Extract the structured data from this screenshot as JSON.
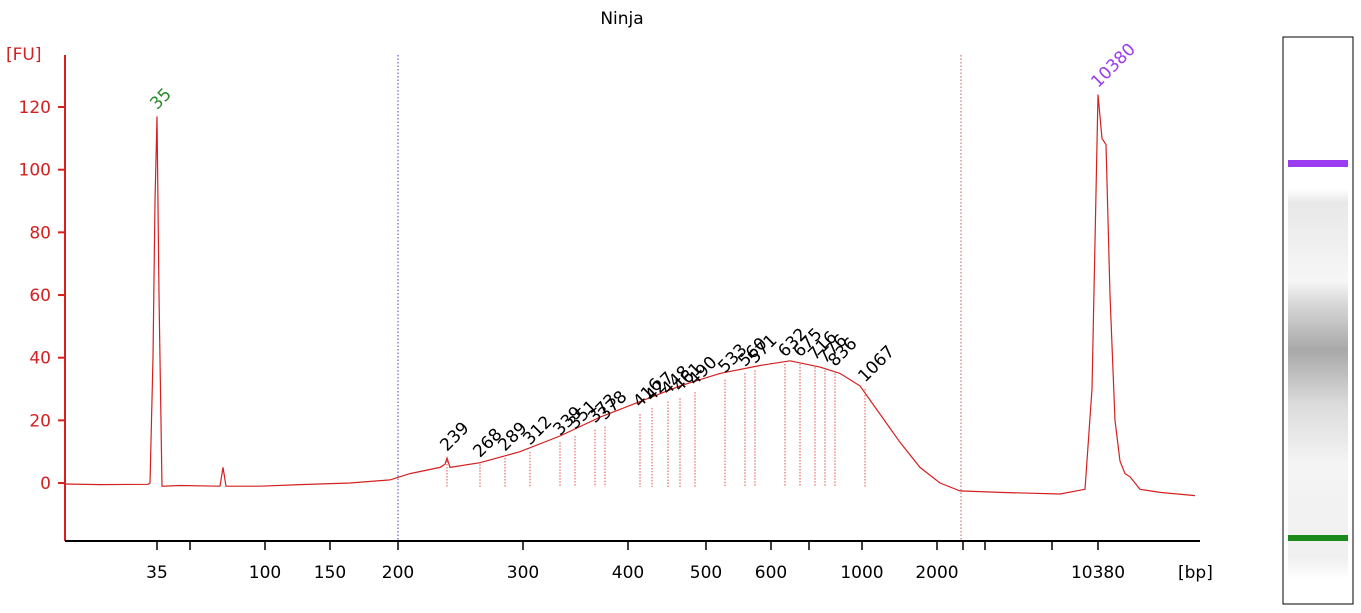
{
  "chart_data": {
    "type": "line",
    "title": "Ninja",
    "ylabel": "[FU]",
    "xlabel": "[bp]",
    "xlim": [
      40,
      153.5
    ],
    "ylim": [
      -18.5,
      136.6
    ],
    "yticks": [
      0,
      20,
      40,
      60,
      80,
      100,
      120
    ],
    "xticks": [
      {
        "value": 49.2,
        "label": "35"
      },
      {
        "value": 52.5,
        "label": null
      },
      {
        "value": 60,
        "label": "100"
      },
      {
        "value": 66.5,
        "label": "150"
      },
      {
        "value": 73.3,
        "label": "200"
      },
      {
        "value": 85.8,
        "label": "300"
      },
      {
        "value": 96.3,
        "label": "400"
      },
      {
        "value": 104.1,
        "label": "500"
      },
      {
        "value": 110.6,
        "label": "600"
      },
      {
        "value": 114.4,
        "label": null
      },
      {
        "value": 119.7,
        "label": "1000"
      },
      {
        "value": 127.2,
        "label": "2000"
      },
      {
        "value": 129.8,
        "label": null
      },
      {
        "value": 132,
        "label": null
      },
      {
        "value": 138.7,
        "label": null
      },
      {
        "value": 143.3,
        "label": "10380"
      }
    ],
    "region_bounds": [
      73.3,
      129.6
    ],
    "series": [
      {
        "color": "#d42020",
        "x": [
          40,
          43.5,
          48.3,
          48.5,
          48.8,
          49,
          49.2,
          49.4,
          49.7,
          51.5,
          55.5,
          55.8,
          56.1,
          59.5,
          63.5,
          68.5,
          72.5,
          74.5,
          77.5,
          78,
          78.2,
          78.5,
          81.5,
          85.5,
          89.5,
          93.5,
          97.5,
          101.5,
          105.5,
          109.5,
          112.5,
          115.5,
          117.5,
          119.5,
          121.5,
          123.5,
          125.5,
          127.5,
          129.5,
          133.5,
          139.5,
          142,
          142.7,
          143.3,
          143.7,
          144.1,
          144.5,
          145,
          145.5,
          146,
          146.5,
          147.5,
          149.5,
          153
        ],
        "values": [
          -0.3,
          -0.5,
          -0.4,
          0,
          40,
          90,
          117,
          60,
          -1,
          -0.8,
          -1,
          5,
          -1,
          -1,
          -0.5,
          0,
          1,
          3,
          5,
          6,
          8,
          5,
          6.5,
          10,
          15,
          21,
          26,
          31,
          35,
          37.5,
          39,
          37,
          35,
          31,
          22,
          13,
          5,
          0,
          -2.5,
          -3,
          -3.5,
          -2,
          30,
          124,
          110,
          108,
          60,
          20,
          7,
          3,
          2,
          -2,
          -3,
          -4
        ]
      }
    ],
    "peak_labels": [
      {
        "text": 35,
        "x": 49.2,
        "y": 117,
        "color": "#2a8a2a"
      },
      {
        "text": 239,
        "x": 78.2,
        "y": 8
      },
      {
        "text": 268,
        "x": 81.5,
        "y": 6
      },
      {
        "text": 289,
        "x": 84,
        "y": 8
      },
      {
        "text": 312,
        "x": 86.5,
        "y": 10
      },
      {
        "text": 339,
        "x": 89.5,
        "y": 13
      },
      {
        "text": 351,
        "x": 91,
        "y": 15
      },
      {
        "text": 373,
        "x": 93,
        "y": 17
      },
      {
        "text": 378,
        "x": 94,
        "y": 18
      },
      {
        "text": 416,
        "x": 97.5,
        "y": 22
      },
      {
        "text": 427,
        "x": 98.7,
        "y": 24
      },
      {
        "text": 448,
        "x": 100.3,
        "y": 26
      },
      {
        "text": 461,
        "x": 101.5,
        "y": 27
      },
      {
        "text": 490,
        "x": 103,
        "y": 29
      },
      {
        "text": 533,
        "x": 106,
        "y": 33
      },
      {
        "text": 560,
        "x": 108,
        "y": 35
      },
      {
        "text": 571,
        "x": 109,
        "y": 36
      },
      {
        "text": 632,
        "x": 112,
        "y": 38
      },
      {
        "text": 675,
        "x": 113.5,
        "y": 38
      },
      {
        "text": 716,
        "x": 115,
        "y": 37
      },
      {
        "text": 776,
        "x": 116,
        "y": 36
      },
      {
        "text": 836,
        "x": 117,
        "y": 35
      },
      {
        "text": 1067,
        "x": 120,
        "y": 30
      },
      {
        "text": 10380,
        "x": 143.3,
        "y": 124,
        "color": "#9b3cf0"
      }
    ]
  }
}
